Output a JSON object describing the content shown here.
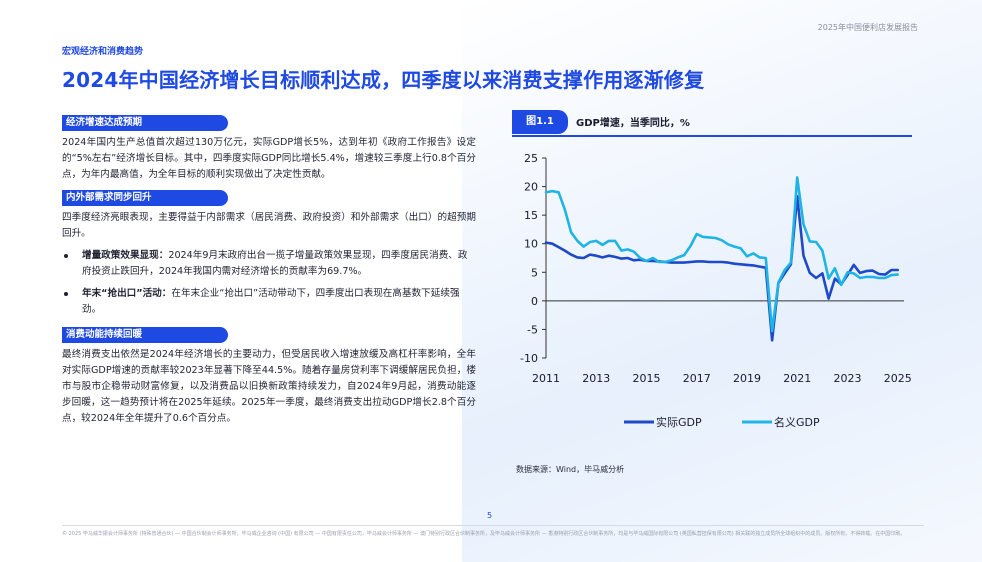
{
  "header": {
    "report_title": "2025年中国便利店发展报告",
    "section_label": "宏观经济和消费趋势",
    "headline": "2024年中国经济增长目标顺利达成，四季度以来消费支撑作用逐渐修复"
  },
  "left": {
    "s1": {
      "title": "经济增速达成预期",
      "para": "2024年国内生产总值首次超过130万亿元，实际GDP增长5%，达到年初《政府工作报告》设定的“5%左右”经济增长目标。其中，四季度实际GDP同比增长5.4%，增速较三季度上行0.8个百分点，为年内最高值，为全年目标的顺利实现做出了决定性贡献。"
    },
    "s2": {
      "title": "内外部需求同步回升",
      "para": "四季度经济亮眼表现，主要得益于内部需求（居民消费、政府投资）和外部需求（出口）的超预期回升。",
      "bullets": [
        {
          "bold": "增量政策效果显现：",
          "text": "2024年9月末政府出台一揽子增量政策效果显现，四季度居民消费、政府投资止跌回升，2024年我国内需对经济增长的贡献率为69.7%。"
        },
        {
          "bold": "年末“抢出口”活动：",
          "text": "在年末企业“抢出口”活动带动下，四季度出口表现在高基数下延续强劲。"
        }
      ]
    },
    "s3": {
      "title": "消费动能持续回暖",
      "para": "最终消费支出依然是2024年经济增长的主要动力，但受居民收入增速放缓及高杠杆率影响，全年对实际GDP增速的贡献率较2023年显著下降至44.5%。随着存量房贷利率下调缓解居民负担，楼市与股市企稳带动财富修复，以及消费品以旧换新政策持续发力，自2024年9月起，消费动能逐步回暖，这一趋势预计将在2025年延续。2025年一季度，最终消费支出拉动GDP增长2.8个百分点，较2024年全年提升了0.6个百分点。"
    }
  },
  "figure": {
    "tag": "图1.1",
    "title": "GDP增速，当季同比，%",
    "source": "数据来源：Wind，毕马威分析"
  },
  "chart_data": {
    "type": "line",
    "title": "GDP增速，当季同比，%",
    "xlabel": "",
    "ylabel": "",
    "xlim": [
      2011,
      2025.25
    ],
    "ylim": [
      -10,
      25
    ],
    "yticks": [
      25,
      20,
      15,
      10,
      5,
      0,
      -5,
      -10
    ],
    "xticks": [
      2011,
      2013,
      2015,
      2017,
      2019,
      2021,
      2023,
      2025
    ],
    "grid": false,
    "legend_position": "bottom",
    "series": [
      {
        "name": "实际GDP",
        "color": "#1e49c8",
        "x": [
          2011.0,
          2011.25,
          2011.5,
          2011.75,
          2012.0,
          2012.25,
          2012.5,
          2012.75,
          2013.0,
          2013.25,
          2013.5,
          2013.75,
          2014.0,
          2014.25,
          2014.5,
          2014.75,
          2015.0,
          2015.25,
          2015.5,
          2015.75,
          2016.0,
          2016.25,
          2016.5,
          2016.75,
          2017.0,
          2017.25,
          2017.5,
          2017.75,
          2018.0,
          2018.25,
          2018.5,
          2018.75,
          2019.0,
          2019.25,
          2019.5,
          2019.75,
          2020.0,
          2020.25,
          2020.5,
          2020.75,
          2021.0,
          2021.25,
          2021.5,
          2021.75,
          2022.0,
          2022.25,
          2022.5,
          2022.75,
          2023.0,
          2023.25,
          2023.5,
          2023.75,
          2024.0,
          2024.25,
          2024.5,
          2024.75,
          2025.0
        ],
        "values": [
          10.2,
          10.0,
          9.4,
          8.8,
          8.1,
          7.6,
          7.5,
          8.1,
          7.9,
          7.6,
          7.9,
          7.7,
          7.4,
          7.5,
          7.1,
          7.2,
          7.0,
          7.0,
          6.9,
          6.8,
          6.7,
          6.7,
          6.7,
          6.8,
          6.9,
          6.9,
          6.8,
          6.8,
          6.8,
          6.7,
          6.5,
          6.4,
          6.3,
          6.2,
          6.0,
          5.8,
          -6.9,
          3.1,
          4.8,
          6.4,
          18.3,
          7.9,
          4.9,
          4.0,
          4.8,
          0.4,
          3.9,
          2.9,
          4.5,
          6.3,
          4.9,
          5.2,
          5.3,
          4.7,
          4.6,
          5.4,
          5.4
        ]
      },
      {
        "name": "名义GDP",
        "color": "#1fb4e6",
        "x": [
          2011.0,
          2011.25,
          2011.5,
          2011.75,
          2012.0,
          2012.25,
          2012.5,
          2012.75,
          2013.0,
          2013.25,
          2013.5,
          2013.75,
          2014.0,
          2014.25,
          2014.5,
          2014.75,
          2015.0,
          2015.25,
          2015.5,
          2015.75,
          2016.0,
          2016.25,
          2016.5,
          2016.75,
          2017.0,
          2017.25,
          2017.5,
          2017.75,
          2018.0,
          2018.25,
          2018.5,
          2018.75,
          2019.0,
          2019.25,
          2019.5,
          2019.75,
          2020.0,
          2020.25,
          2020.5,
          2020.75,
          2021.0,
          2021.25,
          2021.5,
          2021.75,
          2022.0,
          2022.25,
          2022.5,
          2022.75,
          2023.0,
          2023.25,
          2023.5,
          2023.75,
          2024.0,
          2024.25,
          2024.5,
          2024.75,
          2025.0
        ],
        "values": [
          19.0,
          19.2,
          19.0,
          16.0,
          12.0,
          10.5,
          9.5,
          10.3,
          10.5,
          9.8,
          10.5,
          10.5,
          8.8,
          9.0,
          8.6,
          7.5,
          7.0,
          7.5,
          6.8,
          6.8,
          7.1,
          7.6,
          8.0,
          9.6,
          11.7,
          11.2,
          11.1,
          11.0,
          10.6,
          9.9,
          9.5,
          9.2,
          7.8,
          8.3,
          7.6,
          7.5,
          -5.3,
          3.2,
          5.4,
          6.7,
          21.6,
          13.4,
          10.4,
          10.3,
          8.8,
          3.9,
          5.7,
          2.8,
          5.0,
          4.8,
          4.0,
          4.2,
          4.2,
          4.0,
          4.0,
          4.5,
          4.6
        ]
      }
    ]
  },
  "footer": {
    "page_number": "5",
    "disclaimer": "© 2025 毕马威华振会计师事务所 (特殊普通合伙) — 中国合伙制会计师事务所，毕马威企业咨询 (中国) 有限公司 — 中国有限责任公司，毕马威会计师事务所 — 澳门特别行政区合伙制事务所，及毕马威会计师事务所 — 香港特别行政区合伙制事务所，均是与毕马威国际有限公司 (英国私营担保有限公司) 相关联的独立成员所全球组织中的成员。版权所有，不得转载。在中国印刷。"
  }
}
